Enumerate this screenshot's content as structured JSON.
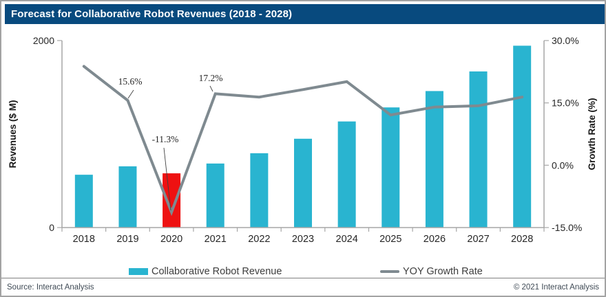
{
  "title_bar": {
    "text": "Forecast for Collaborative Robot Revenues (2018 - 2028)",
    "bg_color": "#084a7e",
    "text_color": "#ffffff"
  },
  "chart_data": {
    "type": "bar+line combo",
    "title": "Forecast for Collaborative Robot Revenues (2018 - 2028)",
    "categories": [
      "2018",
      "2019",
      "2020",
      "2021",
      "2022",
      "2023",
      "2024",
      "2025",
      "2026",
      "2027",
      "2028"
    ],
    "series": [
      {
        "name": "Collaborative Robot Revenue",
        "type": "bar",
        "axis": "left",
        "unit": "$ M",
        "values": [
          565,
          655,
          580,
          685,
          795,
          950,
          1135,
          1285,
          1460,
          1670,
          1945
        ],
        "color": "#29b4d0",
        "highlight": {
          "category": "2020",
          "color": "#ee1111"
        }
      },
      {
        "name": "YOY Growth Rate",
        "type": "line",
        "axis": "right",
        "unit": "%",
        "values": [
          23.8,
          15.6,
          -11.3,
          17.2,
          16.4,
          18.2,
          20.1,
          12.1,
          14.0,
          14.3,
          16.4
        ],
        "color": "#7f8a90"
      }
    ],
    "annotations": [
      {
        "category": "2019",
        "text": "15.6%"
      },
      {
        "category": "2020",
        "text": "-11.3%"
      },
      {
        "category": "2021",
        "text": "17.2%"
      }
    ],
    "left_axis": {
      "label": "Revenues ($ M)",
      "min": 0,
      "max": 2000,
      "ticks": [
        {
          "label": "2000",
          "value": 2000
        },
        {
          "label": "0",
          "value": 0
        }
      ]
    },
    "right_axis": {
      "label": "Growth Rate (%)",
      "min": -15,
      "max": 30,
      "ticks": [
        {
          "label": "30.0%",
          "value": 30
        },
        {
          "label": "15.0%",
          "value": 15
        },
        {
          "label": "0.0%",
          "value": 0
        },
        {
          "label": "-15.0%",
          "value": -15
        }
      ]
    },
    "grid": "off",
    "legend_position": "bottom",
    "axis_color": "#a6a6a6",
    "tick_text_color": "#262626"
  },
  "legend": [
    {
      "label": "Collaborative Robot Revenue",
      "swatch": "bar",
      "color": "#29b4d0"
    },
    {
      "label": "YOY Growth Rate",
      "swatch": "line",
      "color": "#7f8a90"
    }
  ],
  "footer": {
    "source": "Source: Interact Analysis",
    "copyright": "© 2021 Interact Analysis"
  }
}
